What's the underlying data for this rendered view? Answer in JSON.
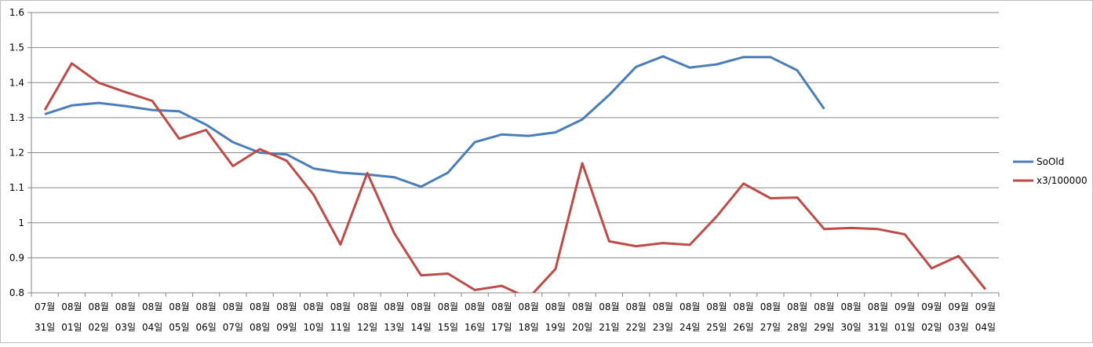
{
  "chart_data": {
    "type": "line",
    "title": "",
    "xlabel": "",
    "ylabel": "",
    "ylim": [
      0.8,
      1.6
    ],
    "y_ticks": [
      "0.8",
      "0.9",
      "1",
      "1.1",
      "1.2",
      "1.3",
      "1.4",
      "1.5",
      "1.6"
    ],
    "grid": true,
    "legend_position": "right",
    "categories": [
      {
        "month": "07월",
        "day": "31일"
      },
      {
        "month": "08월",
        "day": "01일"
      },
      {
        "month": "08월",
        "day": "02일"
      },
      {
        "month": "08월",
        "day": "03일"
      },
      {
        "month": "08월",
        "day": "04일"
      },
      {
        "month": "08월",
        "day": "05일"
      },
      {
        "month": "08월",
        "day": "06일"
      },
      {
        "month": "08월",
        "day": "07일"
      },
      {
        "month": "08월",
        "day": "08일"
      },
      {
        "month": "08월",
        "day": "09일"
      },
      {
        "month": "08월",
        "day": "10일"
      },
      {
        "month": "08월",
        "day": "11일"
      },
      {
        "month": "08월",
        "day": "12일"
      },
      {
        "month": "08월",
        "day": "13일"
      },
      {
        "month": "08월",
        "day": "14일"
      },
      {
        "month": "08월",
        "day": "15일"
      },
      {
        "month": "08월",
        "day": "16일"
      },
      {
        "month": "08월",
        "day": "17일"
      },
      {
        "month": "08월",
        "day": "18일"
      },
      {
        "month": "08월",
        "day": "19일"
      },
      {
        "month": "08월",
        "day": "20일"
      },
      {
        "month": "08월",
        "day": "21일"
      },
      {
        "month": "08월",
        "day": "22일"
      },
      {
        "month": "08월",
        "day": "23일"
      },
      {
        "month": "08월",
        "day": "24일"
      },
      {
        "month": "08월",
        "day": "25일"
      },
      {
        "month": "08월",
        "day": "26일"
      },
      {
        "month": "08월",
        "day": "27일"
      },
      {
        "month": "08월",
        "day": "28일"
      },
      {
        "month": "08월",
        "day": "29일"
      },
      {
        "month": "08월",
        "day": "30일"
      },
      {
        "month": "08월",
        "day": "31일"
      },
      {
        "month": "09월",
        "day": "01일"
      },
      {
        "month": "09월",
        "day": "02일"
      },
      {
        "month": "09월",
        "day": "03일"
      },
      {
        "month": "09월",
        "day": "04일"
      }
    ],
    "series": [
      {
        "name": "SoOld",
        "color": "#4a7ebb",
        "values": [
          1.31,
          1.335,
          1.342,
          1.333,
          1.322,
          1.318,
          1.28,
          1.23,
          1.2,
          1.195,
          1.155,
          1.143,
          1.138,
          1.13,
          1.103,
          1.143,
          1.23,
          1.252,
          1.248,
          1.258,
          1.295,
          1.365,
          1.445,
          1.475,
          1.443,
          1.452,
          1.473,
          1.473,
          1.435,
          1.325,
          null,
          null,
          null,
          null,
          null,
          null
        ]
      },
      {
        "name": "x3/100000",
        "color": "#be4b48",
        "values": [
          1.322,
          1.455,
          1.4,
          1.373,
          1.348,
          1.24,
          1.265,
          1.162,
          1.21,
          1.177,
          1.08,
          0.938,
          1.142,
          0.97,
          0.85,
          0.855,
          0.808,
          0.82,
          0.785,
          0.868,
          1.17,
          0.947,
          0.933,
          0.942,
          0.937,
          1.018,
          1.112,
          1.07,
          1.072,
          0.982,
          0.985,
          0.982,
          0.967,
          0.87,
          0.905,
          0.81
        ]
      }
    ]
  }
}
